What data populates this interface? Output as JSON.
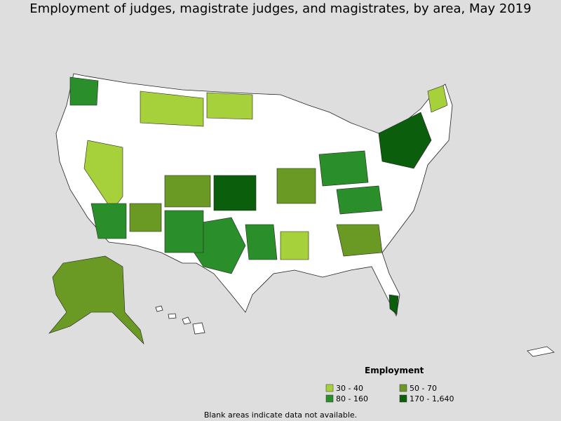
{
  "title": "Employment of judges, magistrate judges, and magistrates, by area, May 2019",
  "legend": {
    "title": "Employment",
    "items": [
      {
        "label": "30 - 40",
        "color": "#a6d13a"
      },
      {
        "label": "50 - 70",
        "color": "#6b9a24"
      },
      {
        "label": "80 - 160",
        "color": "#2a8f2a"
      },
      {
        "label": "170 - 1,640",
        "color": "#0b5e0b"
      }
    ]
  },
  "note": "Blank areas indicate data not available."
}
